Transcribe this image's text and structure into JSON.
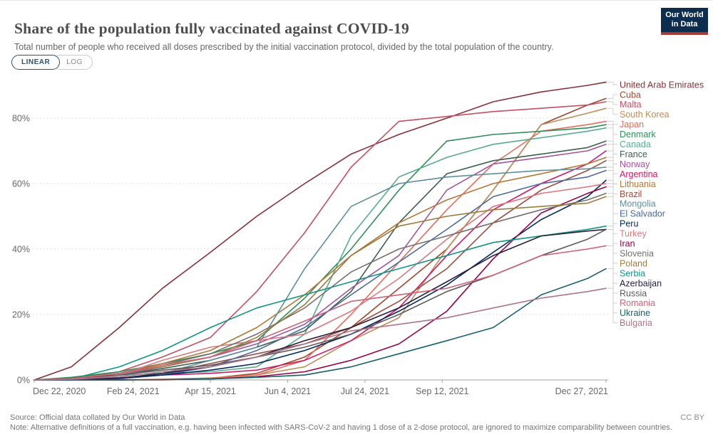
{
  "header": {
    "title": "Share of the population fully vaccinated against COVID-19",
    "subtitle": "Total number of people who received all doses prescribed by the initial vaccination protocol, divided by the total population of the country."
  },
  "logo": {
    "line1": "Our World",
    "line2": "in Data",
    "bg_color": "#0d2d4e",
    "bar_color": "#a63a2e"
  },
  "controls": {
    "linear": "LINEAR",
    "log": "LOG",
    "active": "LINEAR"
  },
  "footer": {
    "source": "Source: Official data collated by Our World in Data",
    "note": "Note: Alternative definitions of a full vaccination, e.g. having been infected with SARS-CoV-2 and having 1 dose of a 2-dose protocol, are ignored to maximize comparability between countries.",
    "license": "CC BY"
  },
  "chart_data": {
    "type": "line",
    "title": "Share of the population fully vaccinated against COVID-19",
    "xlabel": "",
    "ylabel": "",
    "grid": "horizontal-dashed",
    "legend_position": "right-of-lines",
    "ylim": [
      0,
      95
    ],
    "y_ticks": [
      {
        "value": 0,
        "label": "0%"
      },
      {
        "value": 20,
        "label": "20%"
      },
      {
        "value": 40,
        "label": "40%"
      },
      {
        "value": 60,
        "label": "60%"
      },
      {
        "value": 80,
        "label": "80%"
      }
    ],
    "x_domain_days": 370,
    "x_ticks": [
      {
        "day": 0,
        "label": "Dec 22, 2020"
      },
      {
        "day": 64,
        "label": "Feb 24, 2021"
      },
      {
        "day": 114,
        "label": "Apr 15, 2021"
      },
      {
        "day": 164,
        "label": "Jun 4, 2021"
      },
      {
        "day": 214,
        "label": "Jul 24, 2021"
      },
      {
        "day": 264,
        "label": "Sep 12, 2021"
      },
      {
        "day": 370,
        "label": "Dec 27, 2021"
      }
    ],
    "sample_days": [
      0,
      24,
      55,
      83,
      114,
      144,
      175,
      205,
      236,
      267,
      297,
      328,
      358,
      370
    ],
    "sample_dates": [
      "Dec 22, 2020",
      "Jan 15, 2021",
      "Feb 15, 2021",
      "Mar 15, 2021",
      "Apr 15, 2021",
      "May 15, 2021",
      "Jun 15, 2021",
      "Jul 15, 2021",
      "Aug 15, 2021",
      "Sep 15, 2021",
      "Oct 15, 2021",
      "Nov 15, 2021",
      "Dec 15, 2021",
      "Dec 27, 2021"
    ],
    "unit": "% of population fully vaccinated",
    "series": [
      {
        "name": "United Arab Emirates",
        "color": "#883039",
        "values": [
          0,
          4,
          16,
          28,
          39,
          50,
          60,
          69,
          75,
          80,
          85,
          88,
          90,
          91
        ]
      },
      {
        "name": "Cuba",
        "color": "#a0462c",
        "values": [
          0,
          0,
          0,
          0,
          0.5,
          2,
          7,
          16,
          28,
          40,
          58,
          78,
          84,
          86
        ]
      },
      {
        "name": "Malta",
        "color": "#c15065",
        "values": [
          0,
          0.5,
          2.5,
          7,
          13,
          27,
          45,
          65,
          79,
          80.5,
          82,
          83,
          84,
          85
        ]
      },
      {
        "name": "South Korea",
        "color": "#bc8e5a",
        "values": [
          0,
          0,
          0,
          0.2,
          0.6,
          1.5,
          4,
          12,
          19,
          40,
          58,
          78,
          81.5,
          83
        ]
      },
      {
        "name": "Japan",
        "color": "#e56e5a",
        "values": [
          0,
          0,
          0,
          0.1,
          0.5,
          1.5,
          6,
          20,
          36,
          52,
          66,
          76,
          78,
          79
        ]
      },
      {
        "name": "Denmark",
        "color": "#2e8e57",
        "values": [
          0,
          0.8,
          2.5,
          5,
          8,
          12,
          25,
          40,
          58,
          73,
          75,
          76,
          77,
          78
        ]
      },
      {
        "name": "Canada",
        "color": "#58ac8c",
        "values": [
          0,
          0.5,
          1.5,
          2,
          2.5,
          4,
          14,
          44,
          62,
          68,
          72,
          74,
          76,
          77
        ]
      },
      {
        "name": "France",
        "color": "#3c5e50",
        "values": [
          0,
          0.3,
          1.5,
          3.5,
          6,
          10,
          15,
          27,
          48,
          63,
          67,
          69,
          71,
          73
        ]
      },
      {
        "name": "Norway",
        "color": "#a2559c",
        "values": [
          0,
          0.2,
          1.5,
          4,
          7,
          11,
          17,
          28,
          38,
          58,
          66,
          68,
          70,
          72
        ]
      },
      {
        "name": "Argentina",
        "color": "#ce1a66",
        "values": [
          0,
          0.1,
          0.6,
          1.5,
          2,
          3,
          6,
          12,
          22,
          38,
          52,
          60,
          66,
          70
        ]
      },
      {
        "name": "Lithuania",
        "color": "#b37635",
        "values": [
          0,
          0.5,
          2,
          5,
          9,
          16,
          26,
          38,
          48,
          55,
          60,
          63,
          66,
          68
        ]
      },
      {
        "name": "Brazil",
        "color": "#9a4e40",
        "values": [
          0,
          0,
          0.5,
          2,
          5,
          8,
          11,
          16,
          24,
          34,
          48,
          58,
          64,
          67
        ]
      },
      {
        "name": "Mongolia",
        "color": "#5d8e9b",
        "values": [
          0,
          0,
          0.5,
          2,
          6,
          10,
          34,
          53,
          60,
          62,
          63,
          64,
          64.5,
          65
        ]
      },
      {
        "name": "El Salvador",
        "color": "#4c6a9c",
        "values": [
          0,
          0,
          0.3,
          1.5,
          4,
          9,
          16,
          26,
          36,
          46,
          56,
          60,
          62,
          64
        ]
      },
      {
        "name": "Peru",
        "color": "#00295b",
        "values": [
          0,
          0.2,
          0.6,
          1.5,
          3,
          5,
          9,
          14,
          21,
          29,
          39,
          49,
          56,
          61
        ]
      },
      {
        "name": "Turkey",
        "color": "#d97a80",
        "values": [
          0,
          0,
          1.5,
          6,
          10,
          12,
          14,
          21,
          31,
          43,
          53,
          57,
          59,
          60
        ]
      },
      {
        "name": "Iran",
        "color": "#970046",
        "values": [
          0,
          0,
          0,
          0.1,
          0.3,
          1,
          2.5,
          6,
          11,
          21,
          37,
          51,
          57,
          59
        ]
      },
      {
        "name": "Slovenia",
        "color": "#75716b",
        "values": [
          0,
          0.5,
          2,
          4.5,
          8,
          14,
          22,
          33,
          40,
          44,
          48,
          52,
          55,
          57
        ]
      },
      {
        "name": "Poland",
        "color": "#9d7b3e",
        "values": [
          0,
          0.5,
          2,
          4,
          7,
          13,
          23,
          38,
          47,
          50,
          52,
          53,
          54,
          56
        ]
      },
      {
        "name": "Serbia",
        "color": "#0f9683",
        "values": [
          0,
          0.3,
          4,
          9,
          16,
          22,
          26,
          30,
          34,
          38,
          42,
          44,
          46,
          47
        ]
      },
      {
        "name": "Azerbaijan",
        "color": "#262140",
        "values": [
          0,
          0,
          0.5,
          2,
          4,
          7,
          12,
          16,
          22,
          30,
          38,
          44,
          45.5,
          46
        ]
      },
      {
        "name": "Russia",
        "color": "#5b5a5c",
        "values": [
          0,
          0.5,
          1.5,
          3,
          4.5,
          7,
          10,
          14,
          20,
          27,
          32,
          38,
          43,
          46
        ]
      },
      {
        "name": "Romania",
        "color": "#cd6377",
        "values": [
          0,
          0.4,
          2,
          4.5,
          7,
          12,
          18,
          24,
          26,
          28,
          32,
          38,
          40,
          41
        ]
      },
      {
        "name": "Ukraine",
        "color": "#17616d",
        "values": [
          0,
          0,
          0,
          0.1,
          0.3,
          0.8,
          1.5,
          4,
          8,
          12,
          16,
          26,
          31,
          34
        ]
      },
      {
        "name": "Bulgaria",
        "color": "#ae7588",
        "values": [
          0,
          0.2,
          1,
          2.5,
          4,
          7,
          11,
          15,
          17,
          19,
          22,
          25,
          27,
          28
        ]
      }
    ]
  }
}
